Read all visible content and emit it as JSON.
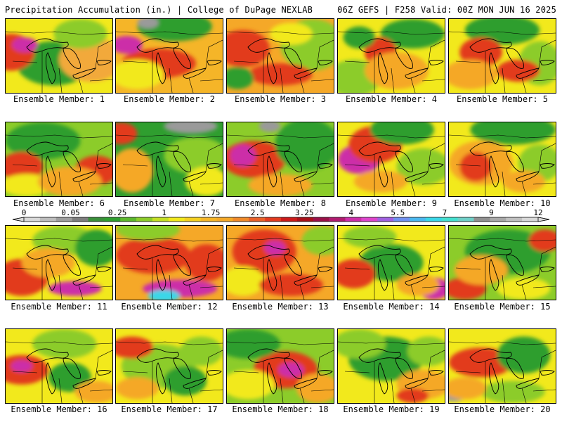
{
  "header": {
    "left": "Precipitation Accumulation (in.) | College of DuPage NEXLAB",
    "right": "06Z GEFS | F258 Valid: 00Z MON JUN 16 2025"
  },
  "panel_prefix": "Ensemble Member: ",
  "panels": [
    {
      "member": "1",
      "label": "Ensemble Member: 1",
      "base": "#f2e91c",
      "blobs": [
        [
          "#2f9e2f",
          0.45,
          0.6,
          0.35,
          0.3
        ],
        [
          "#e23a1e",
          0.05,
          0.45,
          0.22,
          0.25
        ],
        [
          "#cc2ea8",
          0.18,
          0.35,
          0.12,
          0.1
        ],
        [
          "#f2a93a",
          0.8,
          0.55,
          0.3,
          0.3
        ],
        [
          "#8ccc2a",
          0.7,
          0.2,
          0.25,
          0.2
        ]
      ]
    },
    {
      "member": "2",
      "label": "Ensemble Member: 2",
      "base": "#f5b528",
      "blobs": [
        [
          "#e23a1e",
          0.4,
          0.6,
          0.35,
          0.2
        ],
        [
          "#cc2ea8",
          0.1,
          0.35,
          0.15,
          0.12
        ],
        [
          "#2f9e2f",
          0.55,
          0.1,
          0.35,
          0.2
        ],
        [
          "#f2e91c",
          0.2,
          0.75,
          0.25,
          0.2
        ],
        [
          "#9a9a9a",
          0.3,
          0.05,
          0.1,
          0.08
        ]
      ]
    },
    {
      "member": "3",
      "label": "Ensemble Member: 3",
      "base": "#f5a828",
      "blobs": [
        [
          "#e23a1e",
          0.15,
          0.4,
          0.25,
          0.25
        ],
        [
          "#8ccc2a",
          0.8,
          0.35,
          0.3,
          0.35
        ],
        [
          "#e23a1e",
          0.5,
          0.75,
          0.3,
          0.15
        ],
        [
          "#2f9e2f",
          0.1,
          0.8,
          0.15,
          0.15
        ],
        [
          "#f2e91c",
          0.6,
          0.2,
          0.2,
          0.15
        ]
      ]
    },
    {
      "member": "4",
      "label": "Ensemble Member: 4",
      "base": "#f2e91c",
      "blobs": [
        [
          "#8ccc2a",
          0.15,
          0.8,
          0.25,
          0.25
        ],
        [
          "#2f9e2f",
          0.7,
          0.2,
          0.3,
          0.2
        ],
        [
          "#e23a1e",
          0.4,
          0.45,
          0.15,
          0.2
        ],
        [
          "#f5a828",
          0.55,
          0.7,
          0.3,
          0.25
        ],
        [
          "#2f9e2f",
          0.2,
          0.25,
          0.15,
          0.15
        ]
      ]
    },
    {
      "member": "5",
      "label": "Ensemble Member: 5",
      "base": "#f2e91c",
      "blobs": [
        [
          "#2f9e2f",
          0.5,
          0.15,
          0.35,
          0.2
        ],
        [
          "#e23a1e",
          0.3,
          0.45,
          0.2,
          0.2
        ],
        [
          "#8ccc2a",
          0.85,
          0.6,
          0.2,
          0.3
        ],
        [
          "#f5a828",
          0.2,
          0.75,
          0.25,
          0.2
        ],
        [
          "#e23a1e",
          0.65,
          0.7,
          0.2,
          0.15
        ]
      ]
    },
    {
      "member": "6",
      "label": "Ensemble Member: 6",
      "base": "#8ccc2a",
      "blobs": [
        [
          "#2f9e2f",
          0.35,
          0.25,
          0.35,
          0.25
        ],
        [
          "#e23a1e",
          0.15,
          0.6,
          0.2,
          0.2
        ],
        [
          "#f2e91c",
          0.2,
          0.85,
          0.25,
          0.15
        ],
        [
          "#e23a1e",
          0.85,
          0.65,
          0.2,
          0.2
        ],
        [
          "#f5a828",
          0.6,
          0.8,
          0.3,
          0.2
        ]
      ]
    },
    {
      "member": "7",
      "label": "Ensemble Member: 7",
      "base": "#2f9e2f",
      "blobs": [
        [
          "#e23a1e",
          0.05,
          0.15,
          0.15,
          0.15
        ],
        [
          "#f5a828",
          0.15,
          0.65,
          0.2,
          0.3
        ],
        [
          "#8ccc2a",
          0.75,
          0.45,
          0.3,
          0.25
        ],
        [
          "#9a9a9a",
          0.7,
          0.05,
          0.25,
          0.1
        ],
        [
          "#f2e91c",
          0.85,
          0.8,
          0.2,
          0.2
        ]
      ]
    },
    {
      "member": "8",
      "label": "Ensemble Member: 8",
      "base": "#8ccc2a",
      "blobs": [
        [
          "#e23a1e",
          0.25,
          0.5,
          0.3,
          0.25
        ],
        [
          "#cc2ea8",
          0.15,
          0.45,
          0.12,
          0.15
        ],
        [
          "#2f9e2f",
          0.75,
          0.3,
          0.3,
          0.35
        ],
        [
          "#f5a828",
          0.5,
          0.85,
          0.3,
          0.15
        ],
        [
          "#9a9a9a",
          0.4,
          0.05,
          0.1,
          0.08
        ]
      ]
    },
    {
      "member": "9",
      "label": "Ensemble Member: 9",
      "base": "#f2e91c",
      "blobs": [
        [
          "#cc2ea8",
          0.2,
          0.5,
          0.2,
          0.2
        ],
        [
          "#e23a1e",
          0.35,
          0.3,
          0.25,
          0.25
        ],
        [
          "#2f9e2f",
          0.6,
          0.1,
          0.3,
          0.2
        ],
        [
          "#8ccc2a",
          0.8,
          0.6,
          0.25,
          0.25
        ],
        [
          "#f5a828",
          0.4,
          0.8,
          0.25,
          0.15
        ]
      ]
    },
    {
      "member": "10",
      "label": "Ensemble Member: 10",
      "base": "#f2e91c",
      "blobs": [
        [
          "#2f9e2f",
          0.6,
          0.1,
          0.4,
          0.2
        ],
        [
          "#f5a828",
          0.3,
          0.55,
          0.3,
          0.3
        ],
        [
          "#e23a1e",
          0.25,
          0.6,
          0.15,
          0.2
        ],
        [
          "#8ccc2a",
          0.85,
          0.55,
          0.2,
          0.25
        ],
        [
          "#f5a828",
          0.7,
          0.8,
          0.2,
          0.15
        ]
      ]
    },
    {
      "member": "11",
      "label": "Ensemble Member: 11",
      "base": "#f2e91c",
      "blobs": [
        [
          "#e23a1e",
          0.15,
          0.7,
          0.25,
          0.25
        ],
        [
          "#cc2ea8",
          0.65,
          0.85,
          0.25,
          0.1
        ],
        [
          "#8ccc2a",
          0.55,
          0.2,
          0.3,
          0.2
        ],
        [
          "#2f9e2f",
          0.85,
          0.3,
          0.2,
          0.25
        ],
        [
          "#f5a828",
          0.4,
          0.5,
          0.25,
          0.2
        ]
      ]
    },
    {
      "member": "12",
      "label": "Ensemble Member: 12",
      "base": "#f5a828",
      "blobs": [
        [
          "#e23a1e",
          0.35,
          0.4,
          0.35,
          0.25
        ],
        [
          "#cc2ea8",
          0.6,
          0.85,
          0.35,
          0.12
        ],
        [
          "#3ad7e8",
          0.45,
          0.95,
          0.15,
          0.08
        ],
        [
          "#8ccc2a",
          0.3,
          0.05,
          0.3,
          0.15
        ],
        [
          "#e23a1e",
          0.85,
          0.5,
          0.2,
          0.25
        ]
      ]
    },
    {
      "member": "13",
      "label": "Ensemble Member: 13",
      "base": "#f5a828",
      "blobs": [
        [
          "#e23a1e",
          0.35,
          0.35,
          0.3,
          0.3
        ],
        [
          "#cc2ea8",
          0.45,
          0.3,
          0.1,
          0.1
        ],
        [
          "#8ccc2a",
          0.9,
          0.2,
          0.2,
          0.2
        ],
        [
          "#f2e91c",
          0.15,
          0.75,
          0.2,
          0.2
        ],
        [
          "#e23a1e",
          0.6,
          0.8,
          0.3,
          0.15
        ]
      ]
    },
    {
      "member": "14",
      "label": "Ensemble Member: 14",
      "base": "#f2e91c",
      "blobs": [
        [
          "#2f9e2f",
          0.5,
          0.5,
          0.3,
          0.25
        ],
        [
          "#e23a1e",
          0.15,
          0.65,
          0.2,
          0.2
        ],
        [
          "#cc2ea8",
          0.9,
          0.85,
          0.15,
          0.15
        ],
        [
          "#8ccc2a",
          0.3,
          0.15,
          0.25,
          0.15
        ],
        [
          "#f5a828",
          0.75,
          0.8,
          0.2,
          0.15
        ]
      ]
    },
    {
      "member": "15",
      "label": "Ensemble Member: 15",
      "base": "#8ccc2a",
      "blobs": [
        [
          "#2f9e2f",
          0.55,
          0.35,
          0.4,
          0.3
        ],
        [
          "#e23a1e",
          0.15,
          0.85,
          0.2,
          0.15
        ],
        [
          "#f5a828",
          0.3,
          0.6,
          0.25,
          0.2
        ],
        [
          "#f2e91c",
          0.7,
          0.85,
          0.25,
          0.15
        ],
        [
          "#e23a1e",
          0.9,
          0.2,
          0.15,
          0.15
        ]
      ]
    },
    {
      "member": "16",
      "label": "Ensemble Member: 16",
      "base": "#f2e91c",
      "blobs": [
        [
          "#e23a1e",
          0.15,
          0.55,
          0.25,
          0.2
        ],
        [
          "#cc2ea8",
          0.15,
          0.5,
          0.1,
          0.08
        ],
        [
          "#8ccc2a",
          0.55,
          0.2,
          0.3,
          0.2
        ],
        [
          "#2f9e2f",
          0.6,
          0.65,
          0.2,
          0.2
        ],
        [
          "#f5a828",
          0.85,
          0.85,
          0.2,
          0.15
        ]
      ]
    },
    {
      "member": "17",
      "label": "Ensemble Member: 17",
      "base": "#f2e91c",
      "blobs": [
        [
          "#8ccc2a",
          0.4,
          0.5,
          0.35,
          0.3
        ],
        [
          "#e23a1e",
          0.15,
          0.25,
          0.2,
          0.15
        ],
        [
          "#2f9e2f",
          0.65,
          0.7,
          0.2,
          0.2
        ],
        [
          "#f5a828",
          0.2,
          0.8,
          0.2,
          0.15
        ],
        [
          "#8ccc2a",
          0.8,
          0.3,
          0.2,
          0.2
        ]
      ]
    },
    {
      "member": "18",
      "label": "Ensemble Member: 18",
      "base": "#8ccc2a",
      "blobs": [
        [
          "#e23a1e",
          0.55,
          0.55,
          0.3,
          0.25
        ],
        [
          "#cc2ea8",
          0.6,
          0.55,
          0.12,
          0.1
        ],
        [
          "#2f9e2f",
          0.2,
          0.2,
          0.3,
          0.2
        ],
        [
          "#f2e91c",
          0.2,
          0.75,
          0.25,
          0.2
        ],
        [
          "#f5a828",
          0.85,
          0.8,
          0.2,
          0.2
        ]
      ]
    },
    {
      "member": "19",
      "label": "Ensemble Member: 19",
      "base": "#f2e91c",
      "blobs": [
        [
          "#2f9e2f",
          0.45,
          0.4,
          0.35,
          0.3
        ],
        [
          "#8ccc2a",
          0.2,
          0.2,
          0.25,
          0.2
        ],
        [
          "#f5a828",
          0.8,
          0.75,
          0.25,
          0.2
        ],
        [
          "#e23a1e",
          0.7,
          0.9,
          0.15,
          0.1
        ],
        [
          "#8ccc2a",
          0.85,
          0.3,
          0.2,
          0.2
        ]
      ]
    },
    {
      "member": "20",
      "label": "Ensemble Member: 20",
      "base": "#f2e91c",
      "blobs": [
        [
          "#e23a1e",
          0.3,
          0.45,
          0.3,
          0.2
        ],
        [
          "#2f9e2f",
          0.7,
          0.35,
          0.25,
          0.25
        ],
        [
          "#8ccc2a",
          0.6,
          0.85,
          0.3,
          0.15
        ],
        [
          "#9a9a9a",
          0.05,
          0.9,
          0.1,
          0.08
        ],
        [
          "#f5a828",
          0.15,
          0.8,
          0.2,
          0.15
        ]
      ]
    }
  ],
  "colorbar": {
    "tick_labels": [
      "0",
      "0.05",
      "0.25",
      "1",
      "1.75",
      "2.5",
      "3.25",
      "4",
      "5.5",
      "7",
      "9",
      "12"
    ],
    "colors": [
      "#d9d9d9",
      "#bdbdbd",
      "#9d9d9d",
      "#7d7d7d",
      "#3a8f3a",
      "#2f9e2f",
      "#5cb82d",
      "#8ccc2a",
      "#c4df24",
      "#f2e91c",
      "#f5d020",
      "#f5b528",
      "#f5a828",
      "#f08a2a",
      "#e8602a",
      "#e23a1e",
      "#cc1a1a",
      "#a8101a",
      "#9a1048",
      "#b01a70",
      "#cc2ea8",
      "#dd44cc",
      "#a060e0",
      "#7090f0",
      "#4ab8f0",
      "#3ad7e8",
      "#44e0d0",
      "#6fd0c8",
      "#909090",
      "#a8a8a8",
      "#c0c0c0",
      "#d8d8d8"
    ]
  }
}
